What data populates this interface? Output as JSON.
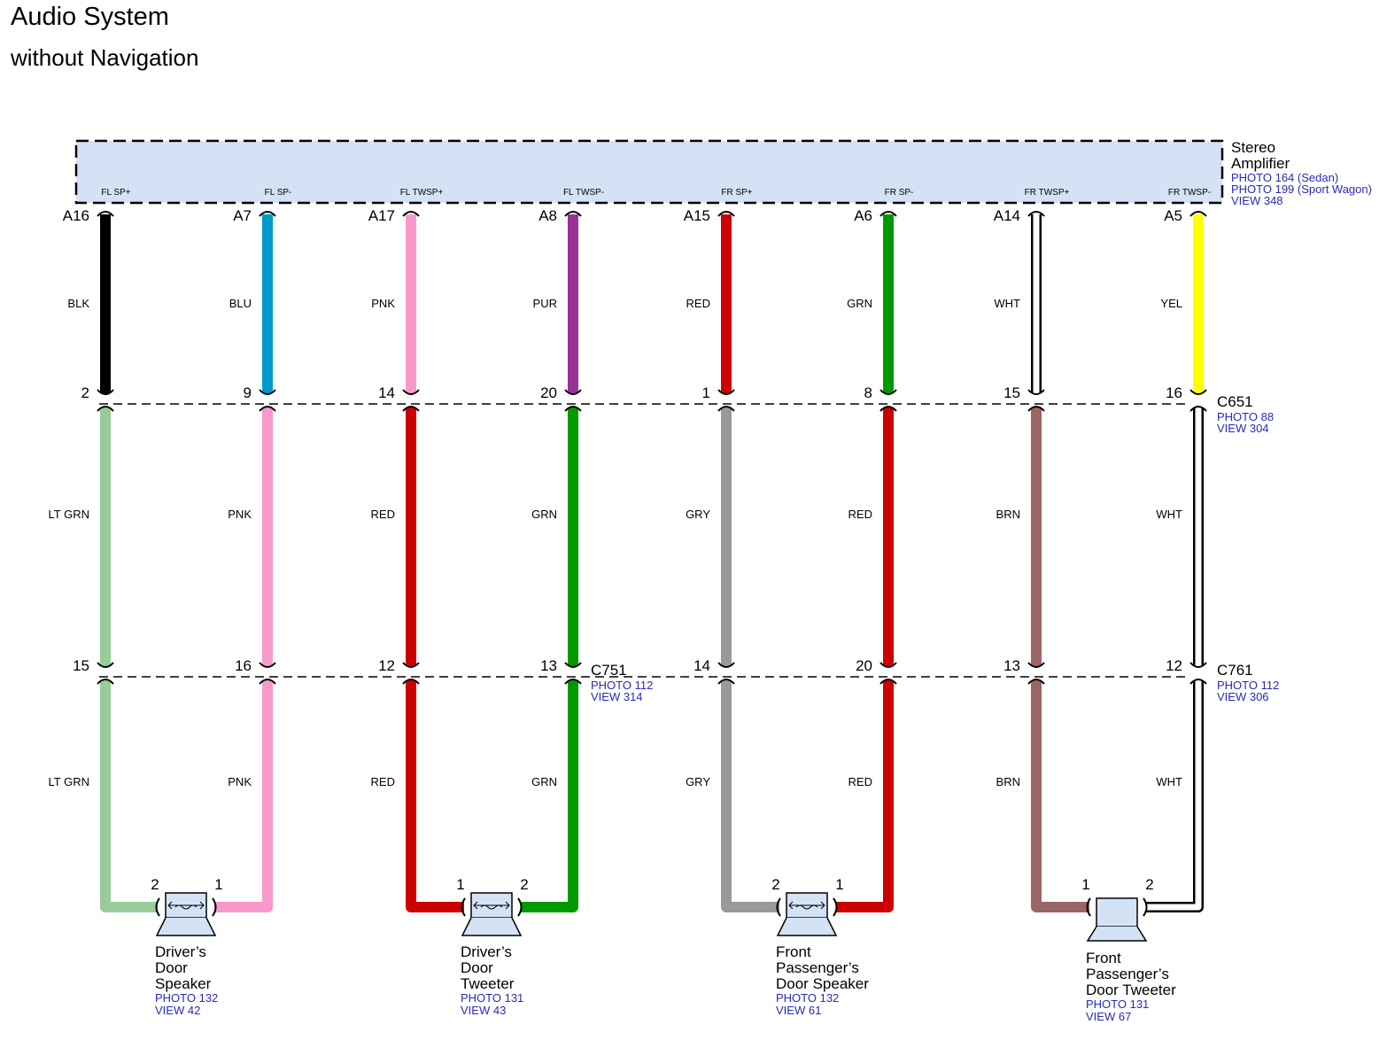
{
  "title": "Audio System",
  "subtitle": "without Navigation",
  "amplifier": {
    "name_lines": [
      "Stereo",
      "Amplifier"
    ],
    "refs": [
      "PHOTO 164 (Sedan)",
      "PHOTO 199 (Sport Wagon)",
      "VIEW 348"
    ]
  },
  "connectors": {
    "c651": {
      "name": "C651",
      "refs": [
        "PHOTO 88",
        "VIEW 304"
      ]
    },
    "c751": {
      "name": "C751",
      "refs": [
        "PHOTO 112",
        "VIEW 314"
      ]
    },
    "c761": {
      "name": "C761",
      "refs": [
        "PHOTO 112",
        "VIEW 306"
      ]
    }
  },
  "circuits": [
    {
      "signal": "FL SP+",
      "amp_pin": "A16",
      "c651_cavity": "2",
      "c7_cavity": "15",
      "seg1_color": "BLK",
      "seg2_color": "LT GRN",
      "seg3_color": "LT GRN",
      "seg1_hex": "#000000",
      "seg2_hex": "#99cc99",
      "seg3_hex": "#99cc99"
    },
    {
      "signal": "FL SP-",
      "amp_pin": "A7",
      "c651_cavity": "9",
      "c7_cavity": "16",
      "seg1_color": "BLU",
      "seg2_color": "PNK",
      "seg3_color": "PNK",
      "seg1_hex": "#0099cc",
      "seg2_hex": "#f79acb",
      "seg3_hex": "#f79acb"
    },
    {
      "signal": "FL TWSP+",
      "amp_pin": "A17",
      "c651_cavity": "14",
      "c7_cavity": "12",
      "seg1_color": "PNK",
      "seg2_color": "RED",
      "seg3_color": "RED",
      "seg1_hex": "#f79acb",
      "seg2_hex": "#cc0000",
      "seg3_hex": "#cc0000"
    },
    {
      "signal": "FL TWSP-",
      "amp_pin": "A8",
      "c651_cavity": "20",
      "c7_cavity": "13",
      "seg1_color": "PUR",
      "seg2_color": "GRN",
      "seg3_color": "GRN",
      "seg1_hex": "#993399",
      "seg2_hex": "#009900",
      "seg3_hex": "#009900"
    },
    {
      "signal": "FR SP+",
      "amp_pin": "A15",
      "c651_cavity": "1",
      "c7_cavity": "14",
      "seg1_color": "RED",
      "seg2_color": "GRY",
      "seg3_color": "GRY",
      "seg1_hex": "#cc0000",
      "seg2_hex": "#999999",
      "seg3_hex": "#999999"
    },
    {
      "signal": "FR SP-",
      "amp_pin": "A6",
      "c651_cavity": "8",
      "c7_cavity": "20",
      "seg1_color": "GRN",
      "seg2_color": "RED",
      "seg3_color": "RED",
      "seg1_hex": "#009900",
      "seg2_hex": "#cc0000",
      "seg3_hex": "#cc0000"
    },
    {
      "signal": "FR TWSP+",
      "amp_pin": "A14",
      "c651_cavity": "15",
      "c7_cavity": "13",
      "seg1_color": "WHT",
      "seg2_color": "BRN",
      "seg3_color": "BRN",
      "seg1_hex": "#ffffff",
      "seg2_hex": "#996666",
      "seg3_hex": "#996666"
    },
    {
      "signal": "FR TWSP-",
      "amp_pin": "A5",
      "c651_cavity": "16",
      "c7_cavity": "12",
      "seg1_color": "YEL",
      "seg2_color": "WHT",
      "seg3_color": "WHT",
      "seg1_hex": "#ffff00",
      "seg2_hex": "#ffffff",
      "seg3_hex": "#ffffff"
    }
  ],
  "components": [
    {
      "name_lines": [
        "Driver’s",
        "Door",
        "Speaker"
      ],
      "refs": [
        "PHOTO 132",
        "VIEW 42"
      ],
      "left_pin": "2",
      "right_pin": "1"
    },
    {
      "name_lines": [
        "Driver’s",
        "Door",
        "Tweeter"
      ],
      "refs": [
        "PHOTO 131",
        "VIEW 43"
      ],
      "left_pin": "1",
      "right_pin": "2"
    },
    {
      "name_lines": [
        "Front",
        "Passenger’s",
        "Door Speaker"
      ],
      "refs": [
        "PHOTO 132",
        "VIEW 61"
      ],
      "left_pin": "2",
      "right_pin": "1"
    },
    {
      "name_lines": [
        "Front",
        "Passenger’s",
        "Door Tweeter"
      ],
      "refs": [
        "PHOTO 131",
        "VIEW 67"
      ],
      "left_pin": "1",
      "right_pin": "2"
    }
  ]
}
